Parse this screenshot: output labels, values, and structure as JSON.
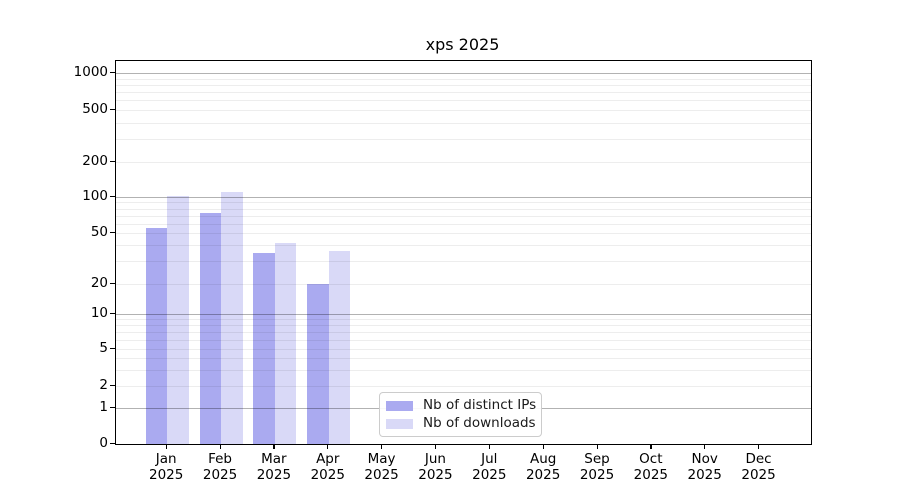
{
  "chart_data": {
    "type": "bar",
    "title": "xps 2025",
    "categories": [
      "Jan",
      "Feb",
      "Mar",
      "Apr",
      "May",
      "Jun",
      "Jul",
      "Aug",
      "Sep",
      "Oct",
      "Nov",
      "Dec"
    ],
    "category_year": "2025",
    "series": [
      {
        "name": "Nb of distinct IPs",
        "color": "#aaaaf0",
        "values": [
          55,
          74,
          35,
          20,
          0,
          0,
          0,
          0,
          0,
          0,
          0,
          0
        ]
      },
      {
        "name": "Nb of downloads",
        "color": "#d9d9f7",
        "values": [
          101,
          110,
          42,
          36,
          0,
          0,
          0,
          0,
          0,
          0,
          0,
          0
        ]
      }
    ],
    "yticks": [
      0,
      1,
      2,
      5,
      10,
      20,
      50,
      100,
      200,
      500,
      1000
    ],
    "ylim": [
      0,
      1300
    ],
    "yscale": "log above 1, linear 0-1 (symlog)",
    "grid": "horizontal, major at powers of 10, faint minors at 2-9 per decade, drawn over bars",
    "legend_position": "inside plot, lower middle",
    "colors": {
      "distinct_ips": "#aaaaf0",
      "downloads": "#d9d9f7",
      "major_grid": "#b3b3b3",
      "minor_grid": "#ededed",
      "axis": "#000000"
    }
  }
}
